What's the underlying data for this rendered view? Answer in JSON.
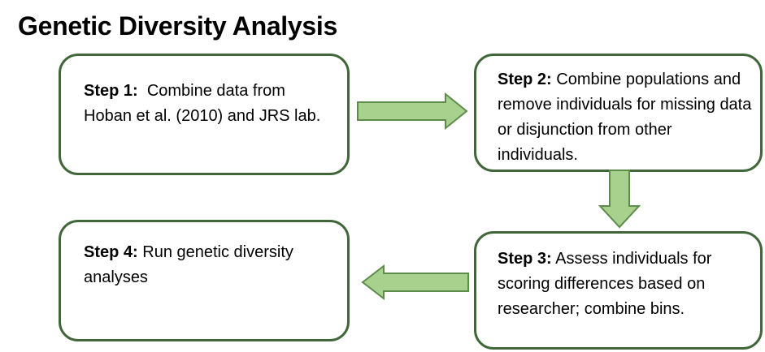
{
  "title": "Genetic Diversity Analysis",
  "colors": {
    "box_border": "#41663a",
    "arrow_fill": "#a9d18e",
    "arrow_stroke": "#5e8c4a"
  },
  "steps": [
    {
      "label": "Step 1:",
      "text": "Combine data from Hoban et al. (2010) and JRS lab."
    },
    {
      "label": "Step 2:",
      "text": "Combine populations and remove individuals for missing data or disjunction from other individuals."
    },
    {
      "label": "Step 3:",
      "text": "Assess individuals for scoring differences based on researcher; combine bins."
    },
    {
      "label": "Step 4:",
      "text": "Run genetic diversity analyses"
    }
  ]
}
